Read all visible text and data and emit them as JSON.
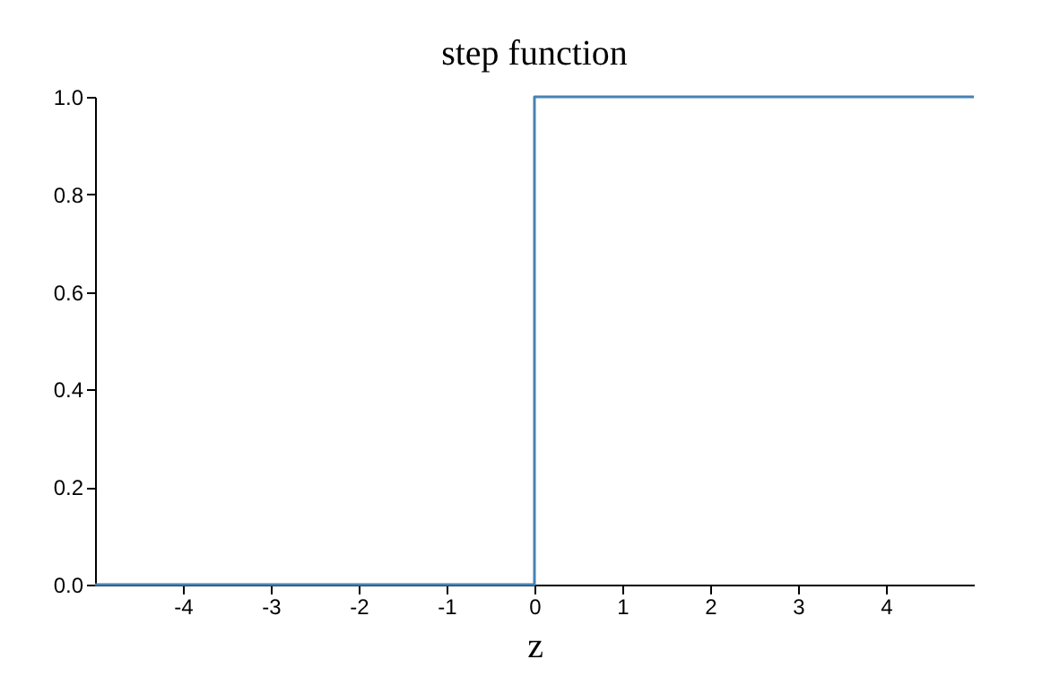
{
  "chart_data": {
    "type": "step",
    "title": "step function",
    "xlabel": "z",
    "x": [
      -5,
      0,
      5
    ],
    "values": [
      0,
      1,
      1
    ],
    "color": "#4682b4",
    "xlim": [
      -5,
      5
    ],
    "xticks": [
      -4,
      -3,
      -2,
      -1,
      0,
      1,
      2,
      3,
      4
    ],
    "ylim": [
      0,
      1
    ],
    "yticks": [
      {
        "value": 0,
        "label": "0.0"
      },
      0.2,
      0.4,
      0.6,
      0.8,
      {
        "value": 1,
        "label": "1.0"
      }
    ],
    "grid": false
  }
}
